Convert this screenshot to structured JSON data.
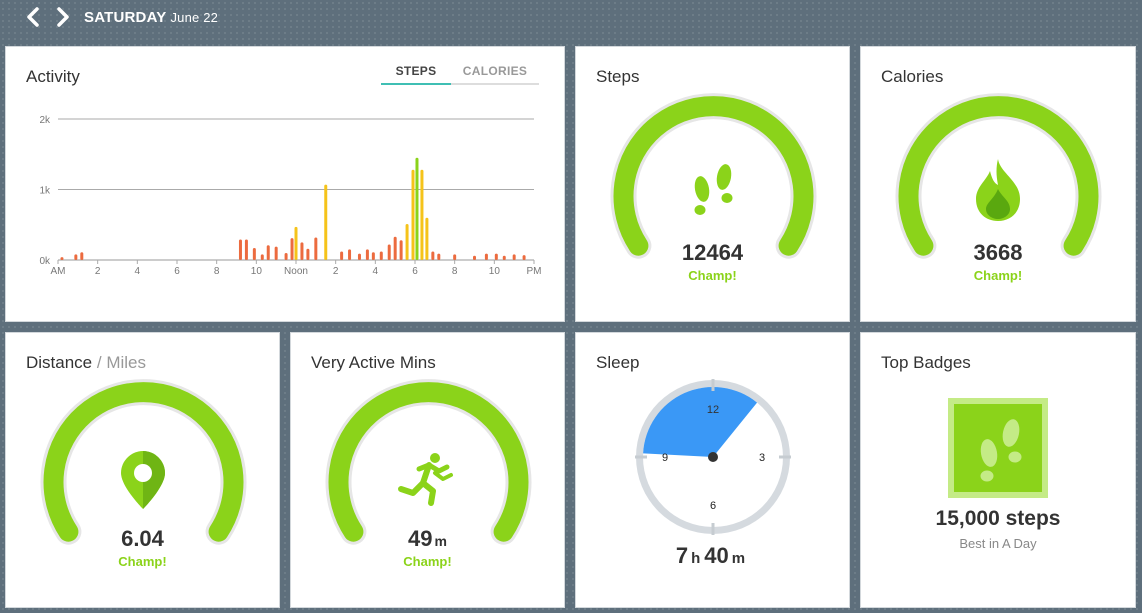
{
  "header": {
    "day": "SATURDAY",
    "date": "June 22"
  },
  "activity": {
    "title": "Activity",
    "tabs": [
      {
        "label": "STEPS",
        "active": true
      },
      {
        "label": "CALORIES",
        "active": false
      }
    ]
  },
  "chart_data": {
    "type": "bar",
    "title": "",
    "xlabel": "",
    "ylabel": "",
    "ylim": [
      0,
      2000
    ],
    "y_ticks": [
      "0k",
      "1k",
      "2k"
    ],
    "x_tick_labels": [
      "AM",
      "2",
      "4",
      "6",
      "8",
      "10",
      "Noon",
      "2",
      "4",
      "6",
      "8",
      "10",
      "PM"
    ],
    "grid": true,
    "colors": {
      "low": "#ec6b3f",
      "medium": "#f5c31a",
      "high": "#8bd31a"
    },
    "bars": [
      {
        "hour": 0.2,
        "value": 40,
        "level": "low"
      },
      {
        "hour": 0.9,
        "value": 80,
        "level": "low"
      },
      {
        "hour": 1.2,
        "value": 110,
        "level": "low"
      },
      {
        "hour": 9.2,
        "value": 290,
        "level": "low"
      },
      {
        "hour": 9.5,
        "value": 290,
        "level": "low"
      },
      {
        "hour": 9.9,
        "value": 170,
        "level": "low"
      },
      {
        "hour": 10.3,
        "value": 80,
        "level": "low"
      },
      {
        "hour": 10.6,
        "value": 210,
        "level": "low"
      },
      {
        "hour": 11.0,
        "value": 190,
        "level": "low"
      },
      {
        "hour": 11.5,
        "value": 100,
        "level": "low"
      },
      {
        "hour": 11.8,
        "value": 310,
        "level": "low"
      },
      {
        "hour": 12.0,
        "value": 470,
        "level": "medium"
      },
      {
        "hour": 12.3,
        "value": 250,
        "level": "low"
      },
      {
        "hour": 12.6,
        "value": 160,
        "level": "low"
      },
      {
        "hour": 13.0,
        "value": 320,
        "level": "low"
      },
      {
        "hour": 13.5,
        "value": 1070,
        "level": "medium"
      },
      {
        "hour": 14.3,
        "value": 120,
        "level": "low"
      },
      {
        "hour": 14.7,
        "value": 150,
        "level": "low"
      },
      {
        "hour": 15.2,
        "value": 90,
        "level": "low"
      },
      {
        "hour": 15.6,
        "value": 150,
        "level": "low"
      },
      {
        "hour": 15.9,
        "value": 110,
        "level": "low"
      },
      {
        "hour": 16.3,
        "value": 120,
        "level": "low"
      },
      {
        "hour": 16.7,
        "value": 220,
        "level": "low"
      },
      {
        "hour": 17.0,
        "value": 330,
        "level": "low"
      },
      {
        "hour": 17.3,
        "value": 280,
        "level": "low"
      },
      {
        "hour": 17.6,
        "value": 510,
        "level": "medium"
      },
      {
        "hour": 17.9,
        "value": 1280,
        "level": "medium"
      },
      {
        "hour": 18.1,
        "value": 1450,
        "level": "high"
      },
      {
        "hour": 18.35,
        "value": 1280,
        "level": "medium"
      },
      {
        "hour": 18.6,
        "value": 600,
        "level": "medium"
      },
      {
        "hour": 18.9,
        "value": 120,
        "level": "low"
      },
      {
        "hour": 19.2,
        "value": 90,
        "level": "low"
      },
      {
        "hour": 20.0,
        "value": 80,
        "level": "low"
      },
      {
        "hour": 21.0,
        "value": 60,
        "level": "low"
      },
      {
        "hour": 21.6,
        "value": 90,
        "level": "low"
      },
      {
        "hour": 22.1,
        "value": 90,
        "level": "low"
      },
      {
        "hour": 22.5,
        "value": 60,
        "level": "low"
      },
      {
        "hour": 23.0,
        "value": 80,
        "level": "low"
      },
      {
        "hour": 23.5,
        "value": 70,
        "level": "low"
      }
    ]
  },
  "steps": {
    "title": "Steps",
    "value": "12464",
    "label": "Champ!",
    "icon": "footprints-icon"
  },
  "calories": {
    "title": "Calories",
    "value": "3668",
    "label": "Champ!",
    "icon": "flame-icon"
  },
  "distance": {
    "title": "Distance",
    "unit_label": "/ Miles",
    "value": "6.04",
    "label": "Champ!",
    "icon": "map-pin-icon"
  },
  "active_mins": {
    "title": "Very Active Mins",
    "value": "49",
    "unit": "m",
    "label": "Champ!",
    "icon": "runner-icon"
  },
  "sleep": {
    "title": "Sleep",
    "hours": "7",
    "hours_unit": "h",
    "minutes": "40",
    "minutes_unit": "m",
    "clock_labels": {
      "top": "12",
      "right": "3",
      "bottom": "6",
      "left": "9"
    },
    "arc_start_clock_hour": 9.1,
    "arc_end_clock_hour": 1.3,
    "arc_color": "#3a98f6"
  },
  "badges": {
    "title": "Top Badges",
    "value": "15,000 steps",
    "sub": "Best in A Day",
    "icon": "badge-footprints-icon"
  },
  "colors": {
    "green": "#8bd31a",
    "green_light": "#c4eb86",
    "gauge_track": "#e6e6e6"
  }
}
